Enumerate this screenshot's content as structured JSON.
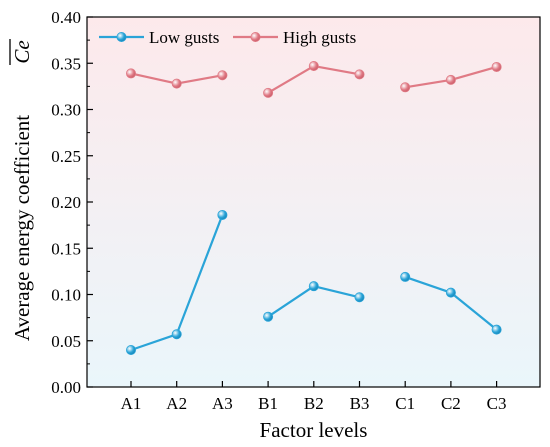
{
  "chart_data": {
    "type": "line",
    "xlabel": "Factor levels",
    "ylabel": "Average energy coefficient",
    "ylabel_symbol": "Ce",
    "ylim": [
      0,
      0.4
    ],
    "yticks": [
      "0.00",
      "0.05",
      "0.10",
      "0.15",
      "0.20",
      "0.25",
      "0.30",
      "0.35",
      "0.40"
    ],
    "categories": [
      "A1",
      "A2",
      "A3",
      "B1",
      "B2",
      "B3",
      "C1",
      "C2",
      "C3"
    ],
    "groups": [
      [
        "A1",
        "A2",
        "A3"
      ],
      [
        "B1",
        "B2",
        "B3"
      ],
      [
        "C1",
        "C2",
        "C3"
      ]
    ],
    "grid": false,
    "legend_position": "top-left",
    "series": [
      {
        "name": "Low gusts",
        "color": "#2aa4d8",
        "values": [
          0.04,
          0.057,
          0.186,
          0.076,
          0.109,
          0.097,
          0.119,
          0.102,
          0.062
        ]
      },
      {
        "name": "High gusts",
        "color": "#e07a85",
        "values": [
          0.339,
          0.328,
          0.337,
          0.318,
          0.347,
          0.338,
          0.324,
          0.332,
          0.346
        ]
      }
    ],
    "background_gradient": [
      "#fde9eb",
      "#eaf6fb"
    ]
  }
}
